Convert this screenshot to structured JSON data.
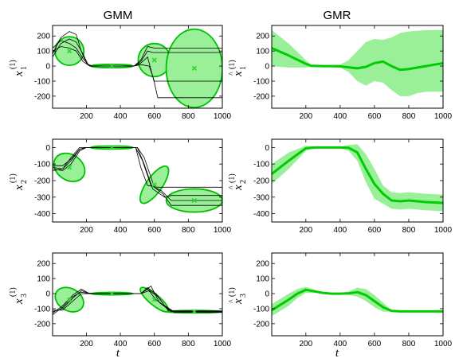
{
  "column_titles": [
    "GMM",
    "GMR"
  ],
  "xlabel": "t",
  "colors": {
    "fill": "#99f099",
    "stroke": "#00c000",
    "center": "#33d633",
    "line": "#00cc00",
    "trace": "#000000"
  },
  "chart_data": [
    {
      "type": "scatter",
      "panel": "gmm-x1",
      "ylabel_base": "x",
      "ylabel_sup": "(1)",
      "ylabel_sub": "1",
      "hat": false,
      "xlim": [
        1,
        1000
      ],
      "ylim": [
        -280,
        270
      ],
      "xticks": [
        200,
        400,
        600,
        800,
        1000
      ],
      "yticks": [
        -200,
        -100,
        0,
        100,
        200
      ],
      "gaussians": [
        {
          "mean": [
            100,
            100
          ],
          "width": 170,
          "height": 190,
          "angle": 0
        },
        {
          "mean": [
            350,
            0
          ],
          "width": 250,
          "height": 22,
          "angle": 0
        },
        {
          "mean": [
            600,
            40
          ],
          "width": 190,
          "height": 220,
          "angle": 0
        },
        {
          "mean": [
            835,
            -15
          ],
          "width": 330,
          "height": 520,
          "angle": 0
        }
      ],
      "traces": [
        [
          [
            1,
            80
          ],
          [
            50,
            190
          ],
          [
            100,
            230
          ],
          [
            140,
            210
          ],
          [
            170,
            100
          ],
          [
            200,
            20
          ],
          [
            230,
            0
          ],
          [
            480,
            0
          ],
          [
            520,
            40
          ],
          [
            560,
            130
          ],
          [
            600,
            120
          ],
          [
            1000,
            120
          ]
        ],
        [
          [
            1,
            60
          ],
          [
            50,
            150
          ],
          [
            100,
            180
          ],
          [
            140,
            160
          ],
          [
            180,
            80
          ],
          [
            210,
            10
          ],
          [
            240,
            0
          ],
          [
            480,
            0
          ],
          [
            520,
            30
          ],
          [
            560,
            100
          ],
          [
            590,
            90
          ],
          [
            1000,
            90
          ]
        ],
        [
          [
            1,
            120
          ],
          [
            50,
            170
          ],
          [
            100,
            150
          ],
          [
            140,
            120
          ],
          [
            180,
            50
          ],
          [
            220,
            0
          ],
          [
            480,
            0
          ],
          [
            520,
            20
          ],
          [
            560,
            60
          ],
          [
            600,
            -110
          ],
          [
            620,
            -210
          ],
          [
            1000,
            -210
          ]
        ],
        [
          [
            1,
            100
          ],
          [
            50,
            130
          ],
          [
            100,
            120
          ],
          [
            140,
            100
          ],
          [
            180,
            30
          ],
          [
            220,
            0
          ],
          [
            480,
            0
          ],
          [
            520,
            10
          ],
          [
            570,
            0
          ],
          [
            600,
            -100
          ],
          [
            1000,
            -100
          ]
        ]
      ]
    },
    {
      "type": "area",
      "panel": "gmr-x1",
      "ylabel_base": "x",
      "ylabel_sup": "(1)",
      "ylabel_sub": "1",
      "hat": true,
      "xlim": [
        1,
        1000
      ],
      "ylim": [
        -280,
        270
      ],
      "xticks": [
        200,
        400,
        600,
        800,
        1000
      ],
      "yticks": [
        -200,
        -100,
        0,
        100,
        200
      ],
      "x": [
        1,
        100,
        200,
        230,
        300,
        350,
        400,
        450,
        500,
        550,
        600,
        650,
        700,
        750,
        800,
        850,
        900,
        950,
        1000
      ],
      "mean": [
        120,
        70,
        15,
        2,
        0,
        0,
        -2,
        -8,
        -15,
        -5,
        20,
        30,
        0,
        -25,
        -20,
        -10,
        0,
        10,
        20
      ],
      "upper": [
        240,
        150,
        40,
        10,
        8,
        8,
        10,
        40,
        100,
        160,
        180,
        175,
        190,
        220,
        230,
        235,
        238,
        240,
        240
      ],
      "lower": [
        0,
        -10,
        -10,
        -5,
        -8,
        -8,
        -10,
        -40,
        -100,
        -130,
        -100,
        -110,
        -160,
        -200,
        -200,
        -180,
        -170,
        -170,
        -170
      ]
    },
    {
      "type": "scatter",
      "panel": "gmm-x2",
      "ylabel_base": "x",
      "ylabel_sup": "(1)",
      "ylabel_sub": "2",
      "hat": false,
      "xlim": [
        1,
        1000
      ],
      "ylim": [
        -450,
        50
      ],
      "xticks": [
        200,
        400,
        600,
        800,
        1000
      ],
      "yticks": [
        -400,
        -300,
        -200,
        -100,
        0
      ],
      "gaussians": [
        {
          "mean": [
            100,
            -120
          ],
          "width": 150,
          "height": 200,
          "angle": -55
        },
        {
          "mean": [
            350,
            0
          ],
          "width": 250,
          "height": 18,
          "angle": 0
        },
        {
          "mean": [
            600,
            -225
          ],
          "width": 260,
          "height": 95,
          "angle": -55
        },
        {
          "mean": [
            835,
            -320
          ],
          "width": 330,
          "height": 140,
          "angle": 0
        }
      ],
      "traces": [
        [
          [
            1,
            -130
          ],
          [
            60,
            -140
          ],
          [
            110,
            -100
          ],
          [
            160,
            -20
          ],
          [
            200,
            0
          ],
          [
            500,
            0
          ],
          [
            540,
            -60
          ],
          [
            600,
            -240
          ],
          [
            650,
            -280
          ],
          [
            700,
            -350
          ],
          [
            1000,
            -350
          ]
        ],
        [
          [
            1,
            -140
          ],
          [
            60,
            -130
          ],
          [
            110,
            -80
          ],
          [
            160,
            -10
          ],
          [
            200,
            0
          ],
          [
            490,
            0
          ],
          [
            530,
            -80
          ],
          [
            580,
            -230
          ],
          [
            640,
            -260
          ],
          [
            700,
            -320
          ],
          [
            1000,
            -320
          ]
        ],
        [
          [
            1,
            -120
          ],
          [
            60,
            -130
          ],
          [
            110,
            -60
          ],
          [
            160,
            0
          ],
          [
            490,
            0
          ],
          [
            520,
            -120
          ],
          [
            560,
            -230
          ],
          [
            620,
            -240
          ],
          [
            700,
            -240
          ],
          [
            1000,
            -240
          ]
        ],
        [
          [
            1,
            -110
          ],
          [
            60,
            -110
          ],
          [
            110,
            -70
          ],
          [
            160,
            -10
          ],
          [
            200,
            0
          ],
          [
            500,
            0
          ],
          [
            540,
            -100
          ],
          [
            590,
            -250
          ],
          [
            660,
            -300
          ],
          [
            700,
            -290
          ],
          [
            1000,
            -290
          ]
        ]
      ]
    },
    {
      "type": "area",
      "panel": "gmr-x2",
      "ylabel_base": "x",
      "ylabel_sup": "(1)",
      "ylabel_sub": "2",
      "hat": true,
      "xlim": [
        1,
        1000
      ],
      "ylim": [
        -450,
        50
      ],
      "xticks": [
        200,
        400,
        600,
        800,
        1000
      ],
      "yticks": [
        -400,
        -300,
        -200,
        -100,
        0
      ],
      "x": [
        1,
        100,
        200,
        250,
        300,
        350,
        400,
        450,
        500,
        550,
        600,
        650,
        700,
        750,
        800,
        850,
        900,
        950,
        1000
      ],
      "mean": [
        -160,
        -80,
        -5,
        0,
        0,
        0,
        0,
        -2,
        -30,
        -130,
        -220,
        -280,
        -320,
        -325,
        -320,
        -325,
        -330,
        -332,
        -335
      ],
      "upper": [
        -100,
        -30,
        10,
        5,
        5,
        5,
        5,
        15,
        20,
        -40,
        -130,
        -230,
        -270,
        -275,
        -270,
        -275,
        -280,
        -282,
        -285
      ],
      "lower": [
        -220,
        -130,
        -20,
        -5,
        -5,
        -5,
        -5,
        -20,
        -80,
        -210,
        -310,
        -340,
        -370,
        -375,
        -370,
        -375,
        -380,
        -382,
        -385
      ]
    },
    {
      "type": "scatter",
      "panel": "gmm-x3",
      "ylabel_base": "x",
      "ylabel_sup": "(1)",
      "ylabel_sub": "3",
      "hat": false,
      "xlim": [
        1,
        1000
      ],
      "ylim": [
        -280,
        270
      ],
      "xticks": [
        200,
        400,
        600,
        800,
        1000
      ],
      "yticks": [
        -200,
        -100,
        0,
        100,
        200
      ],
      "gaussians": [
        {
          "mean": [
            100,
            -40
          ],
          "width": 130,
          "height": 200,
          "angle": -60
        },
        {
          "mean": [
            350,
            0
          ],
          "width": 250,
          "height": 16,
          "angle": 0
        },
        {
          "mean": [
            600,
            -40
          ],
          "width": 210,
          "height": 70,
          "angle": 40
        },
        {
          "mean": [
            835,
            -120
          ],
          "width": 330,
          "height": 16,
          "angle": 0
        }
      ],
      "traces": [
        [
          [
            1,
            -130
          ],
          [
            60,
            -80
          ],
          [
            120,
            -10
          ],
          [
            170,
            30
          ],
          [
            210,
            5
          ],
          [
            260,
            0
          ],
          [
            520,
            0
          ],
          [
            570,
            20
          ],
          [
            620,
            -20
          ],
          [
            680,
            -110
          ],
          [
            720,
            -120
          ],
          [
            1000,
            -120
          ]
        ],
        [
          [
            1,
            -120
          ],
          [
            60,
            -100
          ],
          [
            120,
            -30
          ],
          [
            170,
            20
          ],
          [
            220,
            0
          ],
          [
            520,
            0
          ],
          [
            560,
            40
          ],
          [
            610,
            0
          ],
          [
            660,
            -80
          ],
          [
            710,
            -115
          ],
          [
            1000,
            -115
          ]
        ],
        [
          [
            1,
            -140
          ],
          [
            60,
            -90
          ],
          [
            120,
            -20
          ],
          [
            170,
            10
          ],
          [
            220,
            0
          ],
          [
            520,
            0
          ],
          [
            580,
            50
          ],
          [
            630,
            -60
          ],
          [
            700,
            -120
          ],
          [
            1000,
            -120
          ]
        ],
        [
          [
            1,
            -110
          ],
          [
            60,
            -110
          ],
          [
            120,
            -50
          ],
          [
            170,
            0
          ],
          [
            220,
            0
          ],
          [
            520,
            0
          ],
          [
            560,
            30
          ],
          [
            610,
            -40
          ],
          [
            680,
            -100
          ],
          [
            720,
            -125
          ],
          [
            1000,
            -125
          ]
        ]
      ]
    },
    {
      "type": "area",
      "panel": "gmr-x3",
      "ylabel_base": "x",
      "ylabel_sup": "(1)",
      "ylabel_sub": "3",
      "hat": true,
      "xlim": [
        1,
        1000
      ],
      "ylim": [
        -280,
        270
      ],
      "xticks": [
        200,
        400,
        600,
        800,
        1000
      ],
      "yticks": [
        -200,
        -100,
        0,
        100,
        200
      ],
      "x": [
        1,
        100,
        150,
        200,
        250,
        300,
        350,
        400,
        450,
        500,
        550,
        600,
        650,
        700,
        750,
        800,
        900,
        1000
      ],
      "mean": [
        -110,
        -40,
        0,
        25,
        15,
        5,
        0,
        0,
        2,
        10,
        -10,
        -50,
        -90,
        -115,
        -118,
        -118,
        -118,
        -118
      ],
      "upper": [
        -70,
        0,
        30,
        45,
        25,
        10,
        5,
        5,
        15,
        40,
        30,
        -10,
        -60,
        -110,
        -113,
        -113,
        -113,
        -113
      ],
      "lower": [
        -150,
        -80,
        -30,
        5,
        5,
        0,
        -5,
        -5,
        -10,
        -20,
        -50,
        -90,
        -120,
        -120,
        -123,
        -123,
        -123,
        -123
      ]
    }
  ]
}
